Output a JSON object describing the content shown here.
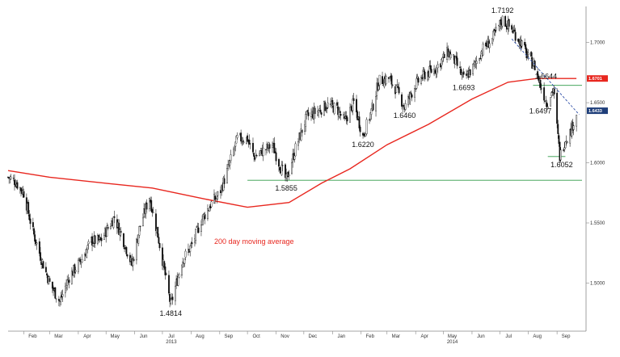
{
  "chart_data": {
    "type": "candlestick",
    "ylim": [
      1.46,
      1.73
    ],
    "y_ticks": [
      "1.5000",
      "1.5500",
      "1.6000",
      "1.6500",
      "1.7000"
    ],
    "x_months": [
      "Feb",
      "Mar",
      "Apr",
      "May",
      "Jun",
      "Jul",
      "Aug",
      "Sep",
      "Oct",
      "Nov",
      "Dec",
      "Jan",
      "Feb",
      "Mar",
      "Apr",
      "May",
      "Jun",
      "Jul",
      "Aug",
      "Sep"
    ],
    "years": [
      {
        "label": "2013",
        "under_month": "Jul"
      },
      {
        "label": "2014",
        "under_month": "May"
      }
    ],
    "price_path": [
      [
        "2013-01-15",
        1.588
      ],
      [
        "2013-01-22",
        1.585
      ],
      [
        "2013-02-01",
        1.575
      ],
      [
        "2013-02-10",
        1.545
      ],
      [
        "2013-02-20",
        1.52
      ],
      [
        "2013-03-01",
        1.5
      ],
      [
        "2013-03-12",
        1.4845
      ],
      [
        "2013-03-22",
        1.505
      ],
      [
        "2013-04-05",
        1.52
      ],
      [
        "2013-04-15",
        1.535
      ],
      [
        "2013-04-25",
        1.535
      ],
      [
        "2013-05-10",
        1.555
      ],
      [
        "2013-05-20",
        1.535
      ],
      [
        "2013-05-29",
        1.515
      ],
      [
        "2013-06-06",
        1.545
      ],
      [
        "2013-06-17",
        1.572
      ],
      [
        "2013-06-26",
        1.54
      ],
      [
        "2013-07-02",
        1.515
      ],
      [
        "2013-07-10",
        1.4814
      ],
      [
        "2013-07-22",
        1.518
      ],
      [
        "2013-08-02",
        1.532
      ],
      [
        "2013-08-12",
        1.552
      ],
      [
        "2013-08-22",
        1.565
      ],
      [
        "2013-09-01",
        1.575
      ],
      [
        "2013-09-10",
        1.595
      ],
      [
        "2013-09-20",
        1.62
      ],
      [
        "2013-10-01",
        1.62
      ],
      [
        "2013-10-08",
        1.605
      ],
      [
        "2013-10-18",
        1.61
      ],
      [
        "2013-10-28",
        1.615
      ],
      [
        "2013-11-05",
        1.598
      ],
      [
        "2013-11-12",
        1.5855
      ],
      [
        "2013-11-22",
        1.612
      ],
      [
        "2013-12-04",
        1.638
      ],
      [
        "2013-12-16",
        1.643
      ],
      [
        "2013-12-26",
        1.648
      ],
      [
        "2014-01-06",
        1.645
      ],
      [
        "2014-01-14",
        1.634
      ],
      [
        "2014-01-24",
        1.65
      ],
      [
        "2014-02-03",
        1.622
      ],
      [
        "2014-02-13",
        1.645
      ],
      [
        "2014-02-20",
        1.668
      ],
      [
        "2014-03-03",
        1.67
      ],
      [
        "2014-03-12",
        1.66
      ],
      [
        "2014-03-20",
        1.646
      ],
      [
        "2014-04-01",
        1.665
      ],
      [
        "2014-04-10",
        1.673
      ],
      [
        "2014-04-22",
        1.678
      ],
      [
        "2014-05-06",
        1.692
      ],
      [
        "2014-05-14",
        1.684
      ],
      [
        "2014-05-23",
        1.6693
      ],
      [
        "2014-06-03",
        1.68
      ],
      [
        "2014-06-12",
        1.694
      ],
      [
        "2014-06-23",
        1.703
      ],
      [
        "2014-07-04",
        1.7192
      ],
      [
        "2014-07-15",
        1.71
      ],
      [
        "2014-07-24",
        1.7
      ],
      [
        "2014-08-01",
        1.687
      ],
      [
        "2014-08-08",
        1.68
      ],
      [
        "2014-08-14",
        1.6644
      ],
      [
        "2014-08-21",
        1.6497
      ],
      [
        "2014-08-28",
        1.662
      ],
      [
        "2014-09-04",
        1.6052
      ],
      [
        "2014-09-10",
        1.62
      ],
      [
        "2014-09-15",
        1.625
      ],
      [
        "2014-09-22",
        1.641
      ]
    ],
    "moving_average": {
      "label": "200 day moving average",
      "points": [
        [
          "2013-01-15",
          1.5935
        ],
        [
          "2013-03-01",
          1.588
        ],
        [
          "2013-05-01",
          1.583
        ],
        [
          "2013-06-20",
          1.579
        ],
        [
          "2013-08-15",
          1.57
        ],
        [
          "2013-10-01",
          1.563
        ],
        [
          "2013-11-15",
          1.567
        ],
        [
          "2013-12-20",
          1.583
        ],
        [
          "2014-01-20",
          1.595
        ],
        [
          "2014-03-01",
          1.615
        ],
        [
          "2014-04-15",
          1.632
        ],
        [
          "2014-06-01",
          1.653
        ],
        [
          "2014-07-10",
          1.667
        ],
        [
          "2014-08-10",
          1.6701
        ],
        [
          "2014-09-22",
          1.6701
        ]
      ]
    },
    "support_lines": [
      {
        "y": 1.5855,
        "from": "2013-10-01",
        "to": "2014-09-28"
      },
      {
        "y": 1.6052,
        "from": "2014-08-22",
        "to": "2014-09-10"
      },
      {
        "y": 1.6644,
        "from": "2014-08-06",
        "to": "2014-09-28"
      }
    ],
    "trend_line": {
      "from": [
        "2014-07-14",
        1.703
      ],
      "to": [
        "2014-09-25",
        1.64
      ]
    },
    "annotations": [
      {
        "text": "1.7192",
        "date": "2014-07-04",
        "value": 1.7192,
        "pos": "above"
      },
      {
        "text": "1.6693",
        "date": "2014-05-23",
        "value": 1.6693,
        "pos": "below"
      },
      {
        "text": "1.6460",
        "date": "2014-03-20",
        "value": 1.646,
        "pos": "below"
      },
      {
        "text": "1.6220",
        "date": "2014-02-03",
        "value": 1.622,
        "pos": "below"
      },
      {
        "text": "1.5855",
        "date": "2013-11-12",
        "value": 1.5855,
        "pos": "below"
      },
      {
        "text": "1.4814",
        "date": "2013-07-10",
        "value": 1.4814,
        "pos": "below"
      },
      {
        "text": "1.6644",
        "date": "2014-08-20",
        "value": 1.6644,
        "pos": "above"
      },
      {
        "text": "1.6497",
        "date": "2014-08-14",
        "value": 1.6497,
        "pos": "below"
      },
      {
        "text": "1.6052",
        "date": "2014-09-06",
        "value": 1.6052,
        "pos": "below"
      }
    ],
    "price_tags": [
      {
        "text": "1.6701",
        "value": 1.6701,
        "color": "#e8271f"
      },
      {
        "text": "1.6433",
        "value": 1.6433,
        "color": "#1f3f7a"
      }
    ]
  }
}
